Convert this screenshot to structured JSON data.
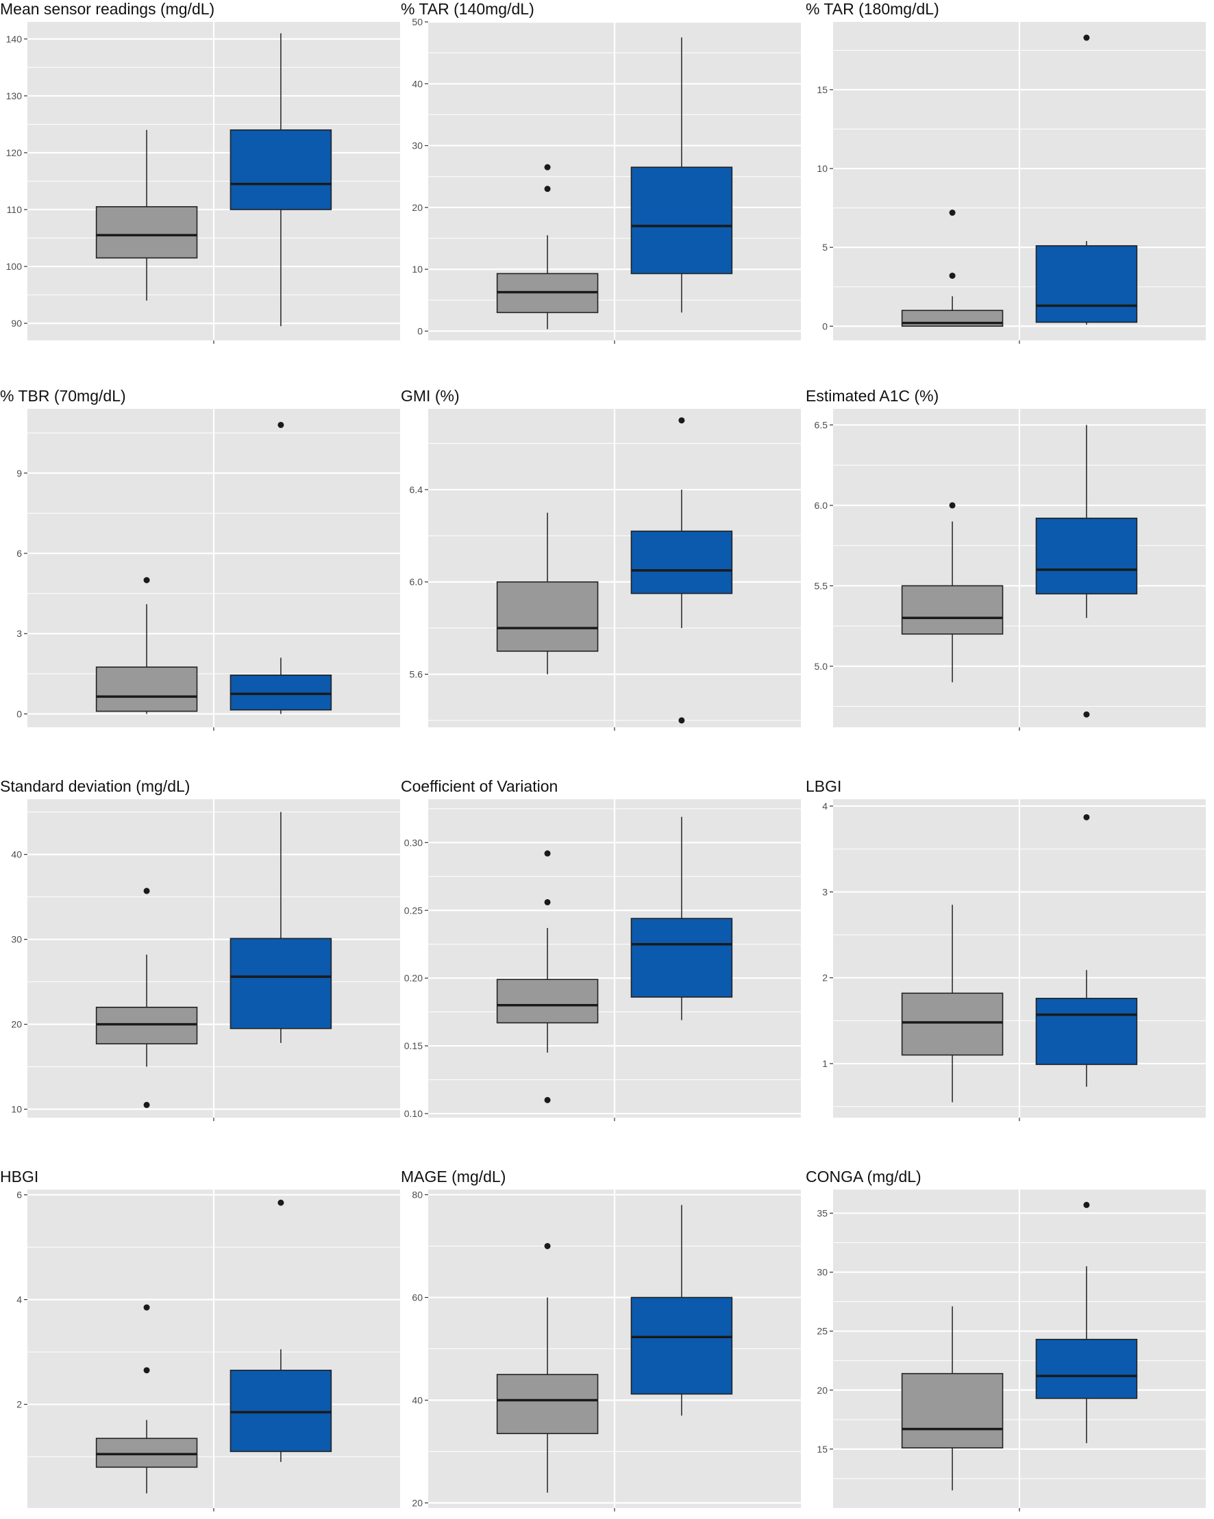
{
  "colors": {
    "panel_bg": "#e5e5e5",
    "grid": "#ffffff",
    "group1_fill": "#999999",
    "group2_fill": "#0b5aad",
    "outline": "#222222"
  },
  "chart_data": [
    {
      "type": "box",
      "title": "Mean sensor readings (mg/dL)",
      "ylim": [
        87,
        143
      ],
      "yticks": [
        90,
        100,
        110,
        120,
        130,
        140
      ],
      "boxes": [
        {
          "min": 94,
          "q1": 101.5,
          "median": 105.5,
          "q3": 110.5,
          "max": 124,
          "outliers": []
        },
        {
          "min": 89.5,
          "q1": 110,
          "median": 114.5,
          "q3": 124,
          "max": 141,
          "outliers": []
        }
      ]
    },
    {
      "type": "box",
      "title": "% TAR (140mg/dL)",
      "ylim": [
        -1.5,
        50
      ],
      "yticks": [
        0,
        10,
        20,
        30,
        40,
        50
      ],
      "boxes": [
        {
          "min": 0.3,
          "q1": 3,
          "median": 6.3,
          "q3": 9.3,
          "max": 15.5,
          "outliers": [
            23,
            26.5
          ]
        },
        {
          "min": 3,
          "q1": 9.3,
          "median": 17,
          "q3": 26.5,
          "max": 47.5,
          "outliers": []
        }
      ]
    },
    {
      "type": "box",
      "title": "% TAR (180mg/dL)",
      "ylim": [
        -0.9,
        19.3
      ],
      "yticks": [
        0,
        5,
        10,
        15
      ],
      "boxes": [
        {
          "min": 0,
          "q1": 0,
          "median": 0.2,
          "q3": 1,
          "max": 1.9,
          "outliers": [
            3.2,
            7.2
          ]
        },
        {
          "min": 0.1,
          "q1": 0.25,
          "median": 1.3,
          "q3": 5.1,
          "max": 5.4,
          "outliers": [
            18.3
          ]
        }
      ]
    },
    {
      "type": "box",
      "title": "% TBR (70mg/dL)",
      "ylim": [
        -0.5,
        11.4
      ],
      "yticks": [
        0,
        3,
        6,
        9
      ],
      "boxes": [
        {
          "min": 0,
          "q1": 0.1,
          "median": 0.65,
          "q3": 1.75,
          "max": 4.1,
          "outliers": [
            5
          ]
        },
        {
          "min": 0,
          "q1": 0.15,
          "median": 0.75,
          "q3": 1.45,
          "max": 2.1,
          "outliers": [
            10.8
          ]
        }
      ]
    },
    {
      "type": "box",
      "title": "GMI (%)",
      "ylim": [
        5.37,
        6.75
      ],
      "yticks": [
        5.6,
        6.0,
        6.4
      ],
      "boxes": [
        {
          "min": 5.6,
          "q1": 5.7,
          "median": 5.8,
          "q3": 6.0,
          "max": 6.3,
          "outliers": []
        },
        {
          "min": 5.8,
          "q1": 5.95,
          "median": 6.05,
          "q3": 6.22,
          "max": 6.4,
          "outliers": [
            5.4,
            6.7
          ]
        }
      ]
    },
    {
      "type": "box",
      "title": "Estimated A1C (%)",
      "ylim": [
        4.62,
        6.6
      ],
      "yticks": [
        5.0,
        5.5,
        6.0,
        6.5
      ],
      "boxes": [
        {
          "min": 4.9,
          "q1": 5.2,
          "median": 5.3,
          "q3": 5.5,
          "max": 5.9,
          "outliers": [
            6.0
          ]
        },
        {
          "min": 5.3,
          "q1": 5.45,
          "median": 5.6,
          "q3": 5.92,
          "max": 6.5,
          "outliers": [
            4.7
          ]
        }
      ]
    },
    {
      "type": "box",
      "title": "Standard deviation (mg/dL)",
      "ylim": [
        9,
        46.5
      ],
      "yticks": [
        10,
        20,
        30,
        40
      ],
      "boxes": [
        {
          "min": 15,
          "q1": 17.7,
          "median": 20,
          "q3": 22,
          "max": 28.2,
          "outliers": [
            10.5,
            35.7
          ]
        },
        {
          "min": 17.8,
          "q1": 19.5,
          "median": 25.6,
          "q3": 30.1,
          "max": 45,
          "outliers": []
        }
      ]
    },
    {
      "type": "box",
      "title": "Coefficient of Variation",
      "ylim": [
        0.097,
        0.332
      ],
      "yticks": [
        0.1,
        0.15,
        0.2,
        0.25,
        0.3
      ],
      "boxes": [
        {
          "min": 0.145,
          "q1": 0.167,
          "median": 0.18,
          "q3": 0.199,
          "max": 0.237,
          "outliers": [
            0.11,
            0.256,
            0.292
          ]
        },
        {
          "min": 0.169,
          "q1": 0.186,
          "median": 0.225,
          "q3": 0.244,
          "max": 0.319,
          "outliers": []
        }
      ]
    },
    {
      "type": "box",
      "title": "LBGI",
      "ylim": [
        0.37,
        4.08
      ],
      "yticks": [
        1,
        2,
        3,
        4
      ],
      "boxes": [
        {
          "min": 0.55,
          "q1": 1.1,
          "median": 1.48,
          "q3": 1.82,
          "max": 2.85,
          "outliers": []
        },
        {
          "min": 0.73,
          "q1": 0.99,
          "median": 1.57,
          "q3": 1.76,
          "max": 2.09,
          "outliers": [
            3.87
          ]
        }
      ]
    },
    {
      "type": "box",
      "title": "HBGI",
      "ylim": [
        0.02,
        6.1
      ],
      "yticks": [
        2,
        4,
        6
      ],
      "boxes": [
        {
          "min": 0.3,
          "q1": 0.8,
          "median": 1.05,
          "q3": 1.35,
          "max": 1.7,
          "outliers": [
            2.65,
            3.85
          ]
        },
        {
          "min": 0.9,
          "q1": 1.1,
          "median": 1.85,
          "q3": 2.65,
          "max": 3.05,
          "outliers": [
            5.85
          ]
        }
      ]
    },
    {
      "type": "box",
      "title": "MAGE (mg/dL)",
      "ylim": [
        19,
        81
      ],
      "yticks": [
        20,
        40,
        60,
        80
      ],
      "boxes": [
        {
          "min": 22,
          "q1": 33.5,
          "median": 40,
          "q3": 45,
          "max": 60,
          "outliers": [
            70
          ]
        },
        {
          "min": 37,
          "q1": 41.2,
          "median": 52.3,
          "q3": 60,
          "max": 78,
          "outliers": []
        }
      ]
    },
    {
      "type": "box",
      "title": "CONGA (mg/dL)",
      "ylim": [
        10,
        37
      ],
      "yticks": [
        15,
        20,
        25,
        30,
        35
      ],
      "boxes": [
        {
          "min": 11.5,
          "q1": 15.1,
          "median": 16.7,
          "q3": 21.4,
          "max": 27.1,
          "outliers": []
        },
        {
          "min": 15.5,
          "q1": 19.3,
          "median": 21.2,
          "q3": 24.3,
          "max": 30.5,
          "outliers": [
            35.7
          ]
        }
      ]
    }
  ]
}
